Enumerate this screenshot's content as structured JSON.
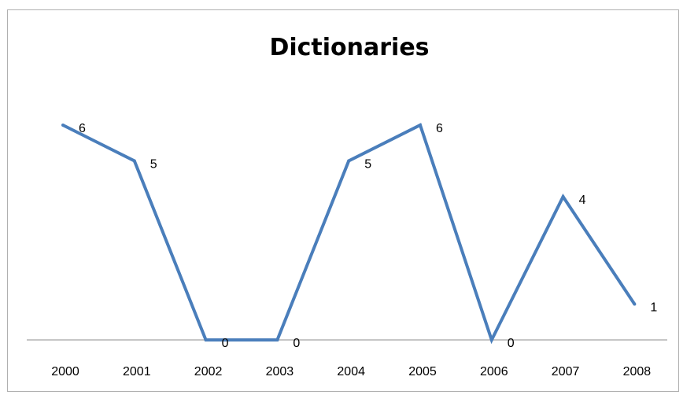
{
  "chart_data": {
    "type": "line",
    "title": "Dictionaries",
    "xlabel": "",
    "ylabel": "",
    "categories": [
      "2000",
      "2001",
      "2002",
      "2003",
      "2004",
      "2005",
      "2006",
      "2007",
      "2008"
    ],
    "series": [
      {
        "values": [
          6,
          5,
          0,
          0,
          5,
          6,
          0,
          4,
          1
        ],
        "color": "#4a7ebb"
      }
    ],
    "data_labels": [
      "6",
      "5",
      "0",
      "0",
      "5",
      "6",
      "0",
      "4",
      "1"
    ],
    "ylim": [
      0,
      6
    ],
    "grid": false,
    "legend": "none"
  }
}
